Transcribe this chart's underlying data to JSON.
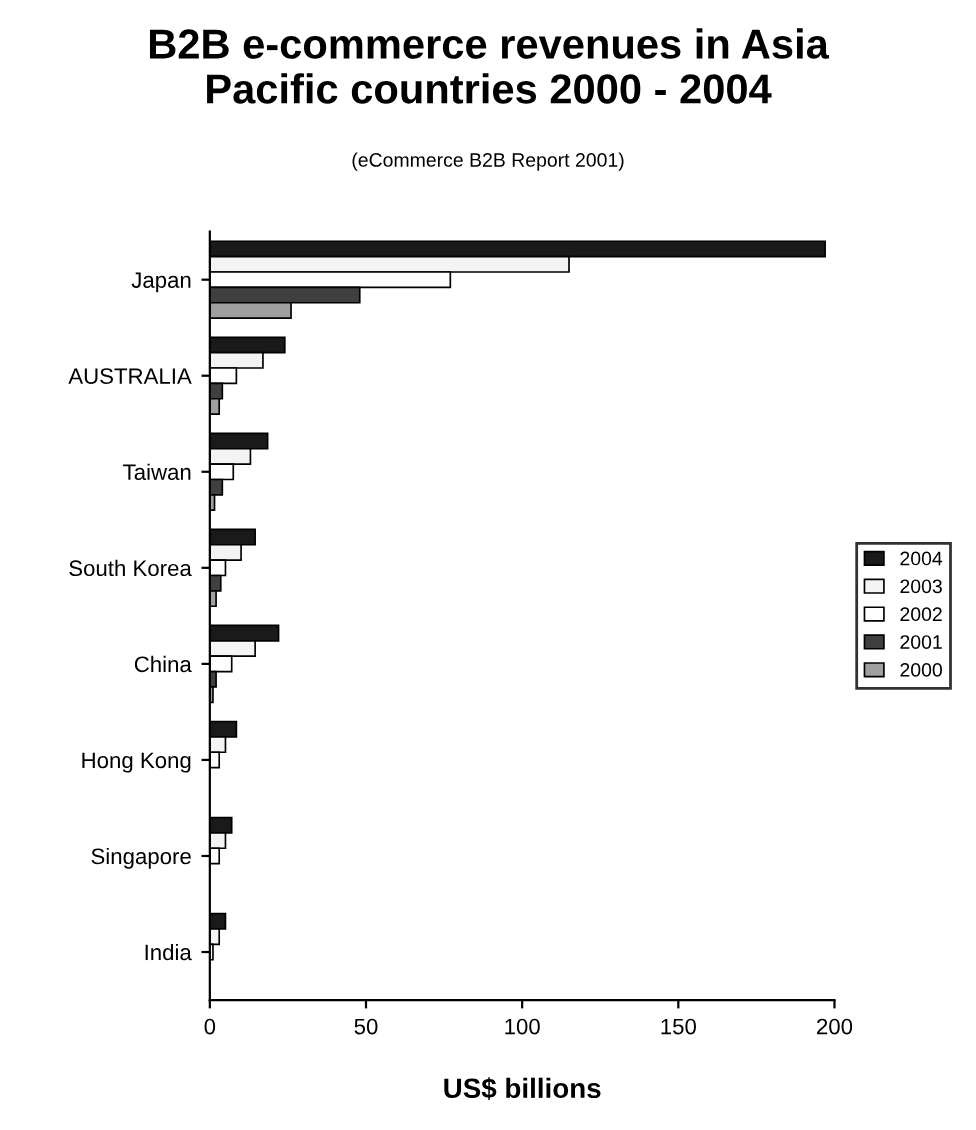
{
  "chart_data": {
    "type": "bar",
    "orientation": "horizontal",
    "title": "B2B e-commerce revenues in Asia\nPacific countries 2000 - 2004",
    "subtitle": "(eCommerce B2B Report 2001)",
    "xlabel": "US$ billions",
    "categories": [
      "Japan",
      "AUSTRALIA",
      "Taiwan",
      "South Korea",
      "China",
      "Hong Kong",
      "Singapore",
      "India"
    ],
    "series": [
      {
        "name": "2004",
        "color": "#1a1a1a",
        "values": [
          197,
          24,
          18.5,
          14.5,
          22,
          8.5,
          7,
          5
        ]
      },
      {
        "name": "2003",
        "color": "#f4f4f4",
        "values": [
          115,
          17,
          13,
          10,
          14.5,
          5,
          5,
          3
        ]
      },
      {
        "name": "2002",
        "color": "#ffffff",
        "values": [
          77,
          8.5,
          7.5,
          5,
          7,
          3,
          3,
          1
        ]
      },
      {
        "name": "2001",
        "color": "#404040",
        "values": [
          48,
          4,
          4,
          3.5,
          2,
          null,
          null,
          null
        ]
      },
      {
        "name": "2000",
        "color": "#a0a0a0",
        "values": [
          26,
          3,
          1.5,
          2,
          1,
          null,
          null,
          null
        ]
      }
    ],
    "xlim": [
      0,
      200
    ],
    "xticks": [
      0,
      50,
      100,
      150,
      200
    ],
    "grid": false,
    "legend": "right"
  }
}
